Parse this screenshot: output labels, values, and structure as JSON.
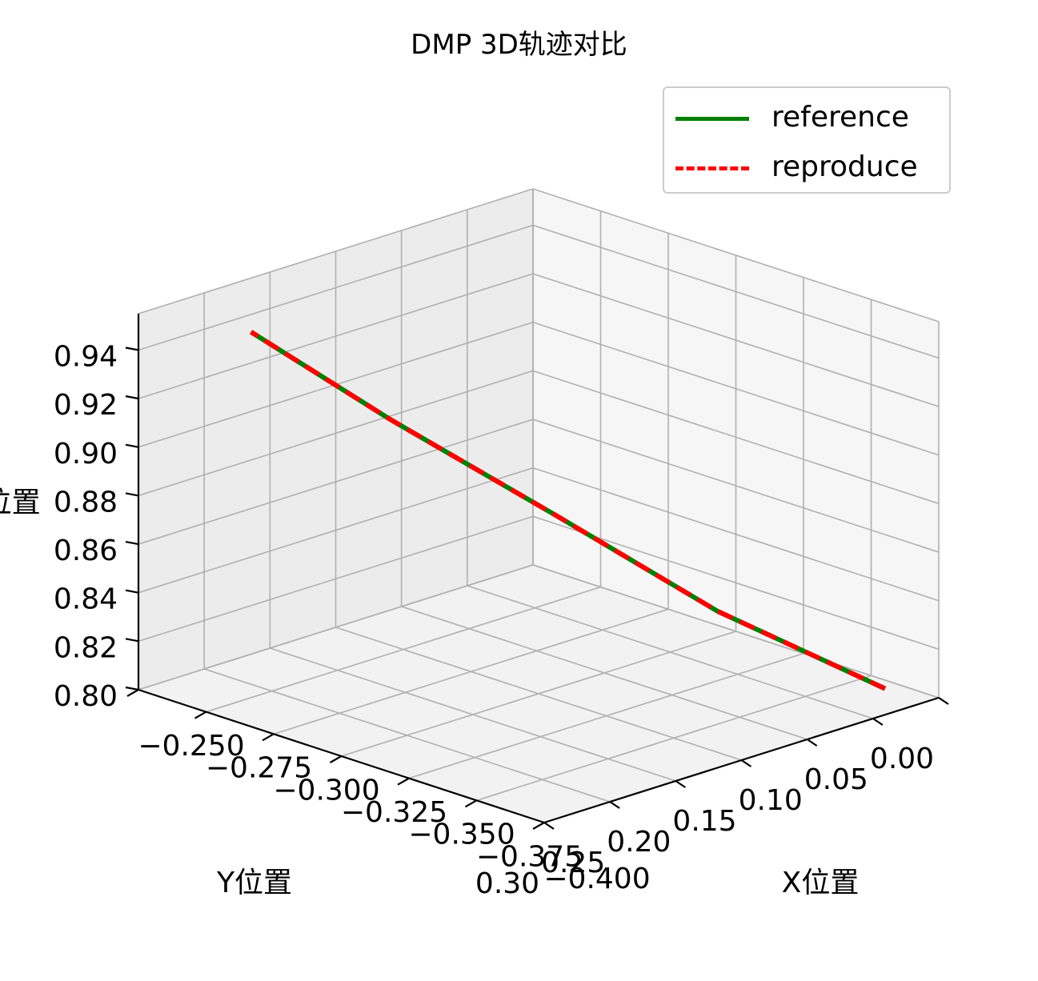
{
  "chart_data": {
    "type": "line",
    "projection": "3d",
    "title": "DMP 3D轨迹对比",
    "xlabel": "X位置",
    "ylabel": "Y位置",
    "zlabel": "Z位置",
    "xlim": [
      -0.25,
      -0.4
    ],
    "ylim": [
      0.0,
      0.3
    ],
    "zlim": [
      0.8,
      0.955
    ],
    "xticks": [
      "−0.400",
      "−0.375",
      "−0.350",
      "−0.325",
      "−0.300",
      "−0.275",
      "−0.250"
    ],
    "yticks": [
      "0.00",
      "0.05",
      "0.10",
      "0.15",
      "0.20",
      "0.25",
      "0.30"
    ],
    "zticks": [
      "0.80",
      "0.82",
      "0.84",
      "0.86",
      "0.88",
      "0.90",
      "0.92",
      "0.94"
    ],
    "grid": true,
    "legend_position": "upper-right",
    "series": [
      {
        "name": "reference",
        "color": "#008000",
        "style": "solid",
        "points": [
          {
            "x": -0.385,
            "y": 0.01,
            "z": 0.8
          },
          {
            "x": -0.345,
            "y": 0.055,
            "z": 0.825
          },
          {
            "x": -0.31,
            "y": 0.105,
            "z": 0.86
          },
          {
            "x": -0.28,
            "y": 0.17,
            "z": 0.9
          },
          {
            "x": -0.26,
            "y": 0.235,
            "z": 0.94
          }
        ]
      },
      {
        "name": "reproduce",
        "color": "#ff0000",
        "style": "dashed",
        "points": [
          {
            "x": -0.385,
            "y": 0.01,
            "z": 0.8
          },
          {
            "x": -0.345,
            "y": 0.055,
            "z": 0.825
          },
          {
            "x": -0.31,
            "y": 0.105,
            "z": 0.86
          },
          {
            "x": -0.28,
            "y": 0.17,
            "z": 0.9
          },
          {
            "x": -0.26,
            "y": 0.235,
            "z": 0.94
          }
        ]
      }
    ]
  }
}
